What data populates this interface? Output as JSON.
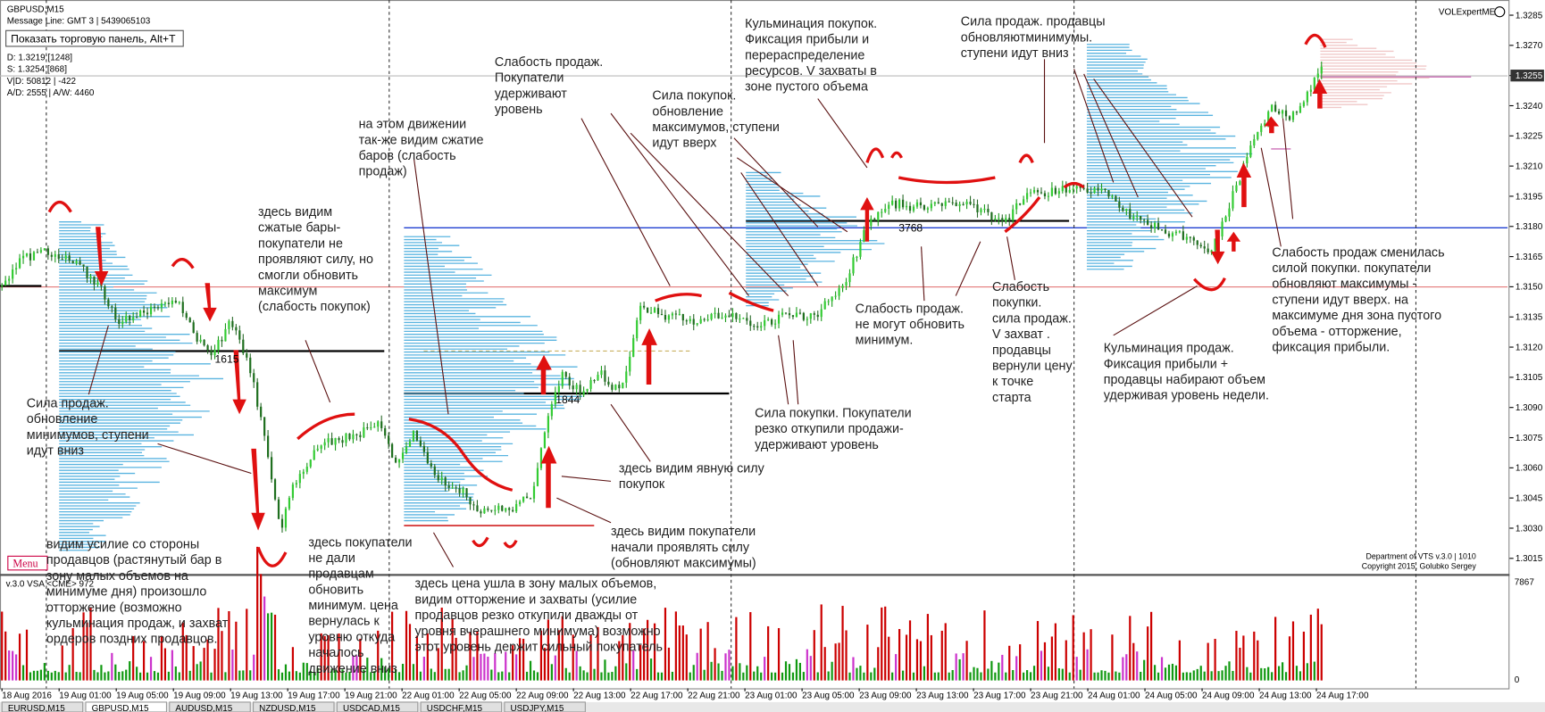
{
  "window": {
    "symbol": "GBPUSD,M15",
    "message": "Message Line: GMT 3 | 5439065103",
    "tooltip": "Показать торговую панель, Alt+T",
    "stats": [
      "D: 1.3219  [1248]",
      "S: 1.3254  [868]",
      "V|D: 50812 | -422",
      "A/D: 2555 | A/W: 4460"
    ],
    "indicator": "VOLExpertME",
    "credits": [
      "Department of VTS  v.3.0 | 1010",
      "Copyright 2015, Golubko Sergey"
    ],
    "menu": "Menu",
    "volume_indicator": "v.3.0 VSA <CME> 972",
    "volume_axis": [
      "7867",
      "0"
    ],
    "price_axis": [
      "1.3285",
      "1.3270",
      "1.3255",
      "1.3240",
      "1.3225",
      "1.3210",
      "1.3195",
      "1.3180",
      "1.3165",
      "1.3150",
      "1.3135",
      "1.3120",
      "1.3105",
      "1.3090",
      "1.3075",
      "1.3060",
      "1.3045",
      "1.3030",
      "1.3015"
    ],
    "time_axis": [
      "18 Aug 2016",
      "19 Aug 01:00",
      "19 Aug 05:00",
      "19 Aug 09:00",
      "19 Aug 13:00",
      "19 Aug 17:00",
      "19 Aug 21:00",
      "22 Aug 01:00",
      "22 Aug 05:00",
      "22 Aug 09:00",
      "22 Aug 13:00",
      "22 Aug 17:00",
      "22 Aug 21:00",
      "23 Aug 01:00",
      "23 Aug 05:00",
      "23 Aug 09:00",
      "23 Aug 13:00",
      "23 Aug 17:00",
      "23 Aug 21:00",
      "24 Aug 01:00",
      "24 Aug 05:00",
      "24 Aug 09:00",
      "24 Aug 13:00",
      "24 Aug 17:00"
    ],
    "levels": [
      "1615",
      "1844",
      "3768"
    ],
    "tabs": [
      "EURUSD,M15",
      "GBPUSD,M15",
      "AUDUSD,M15",
      "NZDUSD,M15",
      "USDCAD,M15",
      "USDCHF,M15",
      "USDJPY,M15"
    ]
  },
  "notes": [
    [
      "Сила продаж.",
      "обновление",
      "минимумов, ступени",
      "идут вниз"
    ],
    [
      "здесь видим",
      "сжатые бары-",
      "покупатели не",
      "проявляют силу, но",
      "смогли обновить",
      "максимум",
      "(слабость покупок)"
    ],
    [
      "на этом движении",
      "так-же видим сжатие",
      "баров (слабость",
      "продаж)"
    ],
    [
      "Слабость продаж.",
      "Покупатели",
      "удерживают",
      "уровень"
    ],
    [
      "Сила покупок.",
      "обновление",
      "максимумов, ступени",
      "идут вверх"
    ],
    [
      "Кульминация покупок.",
      "Фиксация прибыли и",
      "перераспределение",
      "ресурсов. V захваты в",
      "зоне пустого объема"
    ],
    [
      "Сила продаж. продавцы",
      "обновляютминимумы.",
      "ступени идут вниз"
    ],
    [
      "Слабость продаж.",
      "не могут обновить",
      "минимум."
    ],
    [
      "Слабость",
      "покупки.",
      "сила продаж.",
      "V захват .",
      "продавцы",
      "вернули цену",
      "к точке",
      "старта"
    ],
    [
      "Слабость продаж сменилась",
      "силой покупки. покупатели",
      "обновляют максимумы -",
      "ступени идут вверх. на",
      "максимуме дня зона пустого",
      "объема - отторжение,",
      "фиксация прибыли."
    ],
    [
      "Кульминация продаж.",
      "Фиксация прибыли +",
      "продавцы набирают объем",
      "удерживая уровень недели."
    ],
    [
      "Сила покупки. Покупатели",
      "резко откупили продажи-",
      "удерживают уровень"
    ],
    [
      "здесь видим явную силу",
      "покупок"
    ],
    [
      "здесь видим покупатели",
      "начали проявлять силу",
      "(обновляют максимумы)"
    ],
    [
      "здесь цена ушла в зону малых объемов,",
      "видим отторжение и захваты (усилие",
      "продавцов резко откупили дважды от",
      "уровня вчерашнего минимума) возможно",
      "этот уровень держит сильный покупатель"
    ],
    [
      "здесь покупатели",
      "не дали",
      "продавцам",
      "обновить",
      "минимум. цена",
      "вернулась к",
      "уровню откуда",
      "началось",
      "движение вниз"
    ],
    [
      "видим усилие со стороны",
      "продавцов (растянутый бар в",
      "зону малых объемов на",
      "минимуме дня)  произошло",
      "отторжение (возможно",
      "кульминация продаж, и захват",
      "ордеров поздних продавцов."
    ]
  ]
}
